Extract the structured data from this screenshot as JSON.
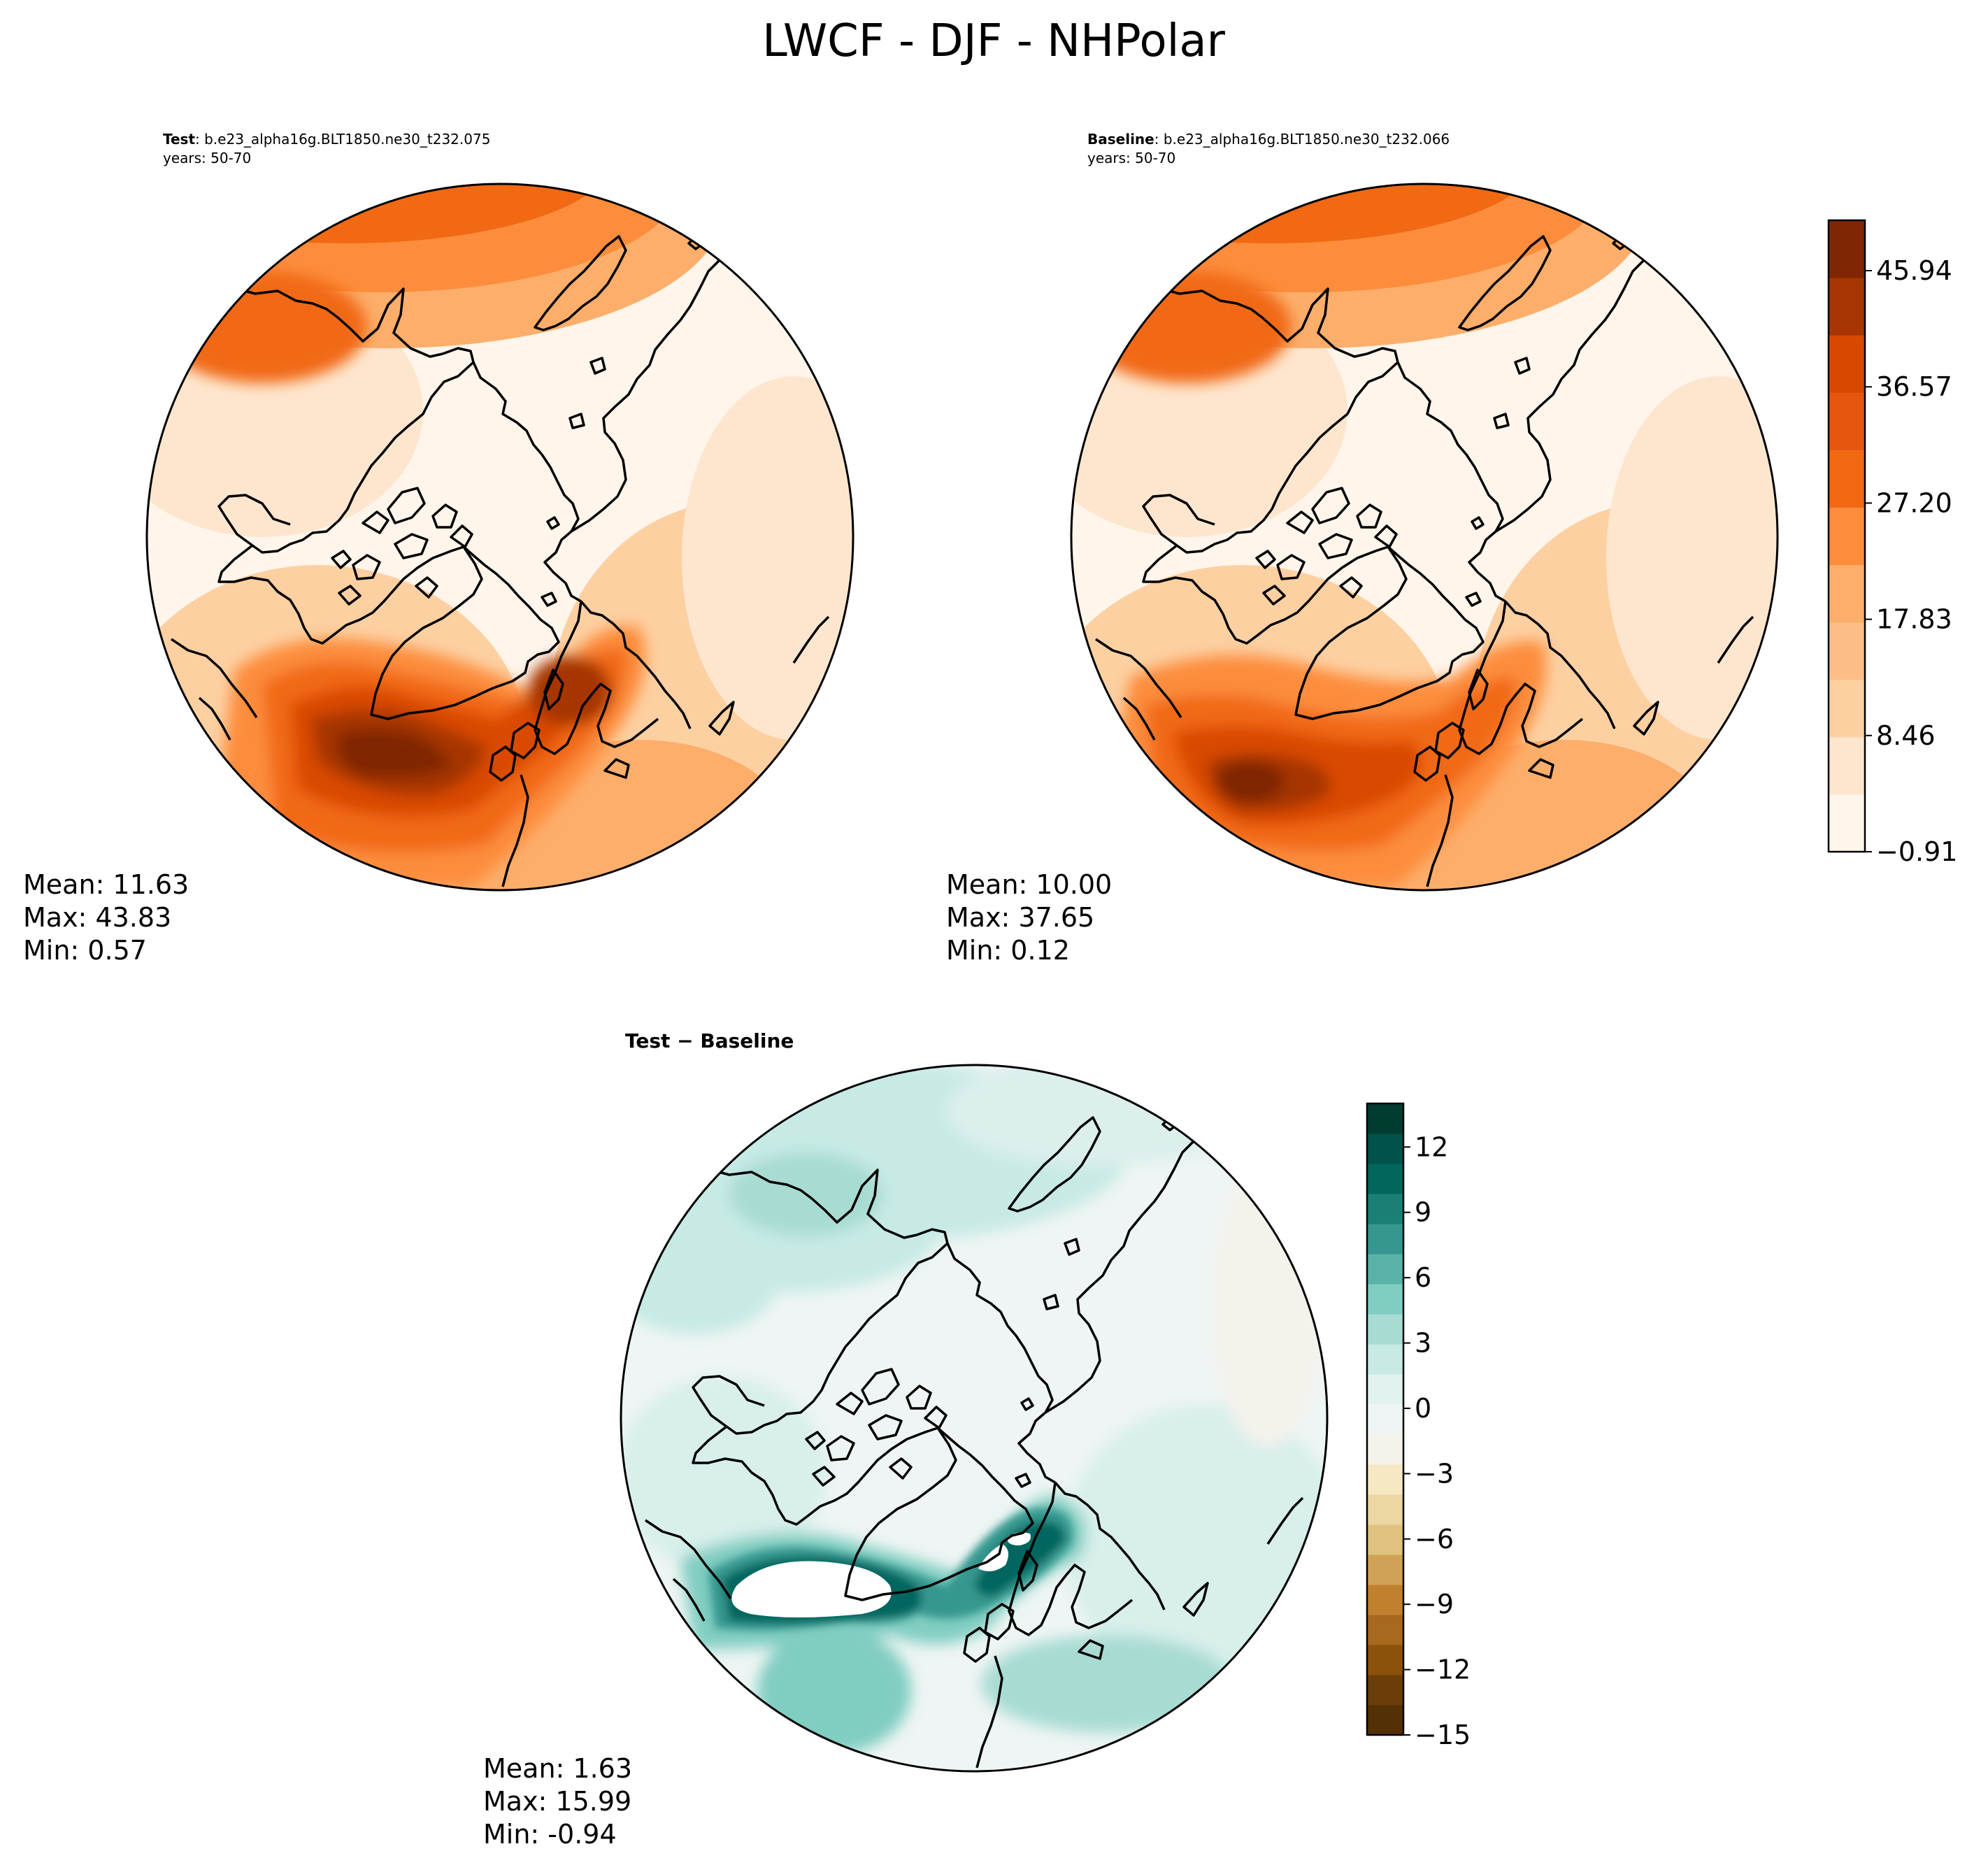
{
  "title": "LWCF - DJF - NHPolar",
  "colors": {
    "orange_levels": [
      "#fff5eb",
      "#fee6ce",
      "#fdd0a2",
      "#fdae6b",
      "#fd8d3c",
      "#f16913",
      "#d94801",
      "#a63603",
      "#7f2704"
    ],
    "diverging_levels": [
      "#543005",
      "#8c510a",
      "#bf812d",
      "#dfc27d",
      "#f6e8c3",
      "#f5f5f5",
      "#c7eae5",
      "#80cdc1",
      "#35978f",
      "#01665e",
      "#003c30"
    ],
    "coastline": "#000000"
  },
  "panels": {
    "test": {
      "label_bold": "Test",
      "label_rest": ": b.e23_alpha16g.BLT1850.ne30_t232.075",
      "years": "years: 50-70",
      "stats": {
        "mean": "Mean: 11.63",
        "max": "Max: 43.83",
        "min": "Min:  0.57"
      }
    },
    "baseline": {
      "label_bold": "Baseline",
      "label_rest": ": b.e23_alpha16g.BLT1850.ne30_t232.066",
      "years": "years: 50-70",
      "stats": {
        "mean": "Mean: 10.00",
        "max": "Max: 37.65",
        "min": "Min:  0.12"
      }
    },
    "diff": {
      "label": "Test − Baseline",
      "stats": {
        "mean": "Mean:  1.63",
        "max": "Max: 15.99",
        "min": "Min: -0.94"
      }
    }
  },
  "colorbars": {
    "main": {
      "ticks": [
        "45.94",
        "36.57",
        "27.20",
        "17.83",
        "8.46",
        "−0.91"
      ],
      "range": [
        -0.91,
        50.0
      ]
    },
    "diff": {
      "ticks": [
        "12",
        "9",
        "6",
        "3",
        "0",
        "−3",
        "−6",
        "−9",
        "−12",
        "−15"
      ],
      "range": [
        -15,
        14
      ]
    }
  },
  "chart_data": [
    {
      "type": "heatmap",
      "projection": "north-polar-stereographic",
      "title": "Test : b.e23_alpha16g.BLT1850.ne30_t232.075",
      "years": "50-70",
      "mean": 11.63,
      "max": 43.83,
      "min": 0.57,
      "colorbar": "main"
    },
    {
      "type": "heatmap",
      "projection": "north-polar-stereographic",
      "title": "Baseline : b.e23_alpha16g.BLT1850.ne30_t232.066",
      "years": "50-70",
      "mean": 10.0,
      "max": 37.65,
      "min": 0.12,
      "colorbar": "main"
    },
    {
      "type": "heatmap",
      "projection": "north-polar-stereographic",
      "title": "Test − Baseline",
      "mean": 1.63,
      "max": 15.99,
      "min": -0.94,
      "colorbar": "diff"
    }
  ]
}
